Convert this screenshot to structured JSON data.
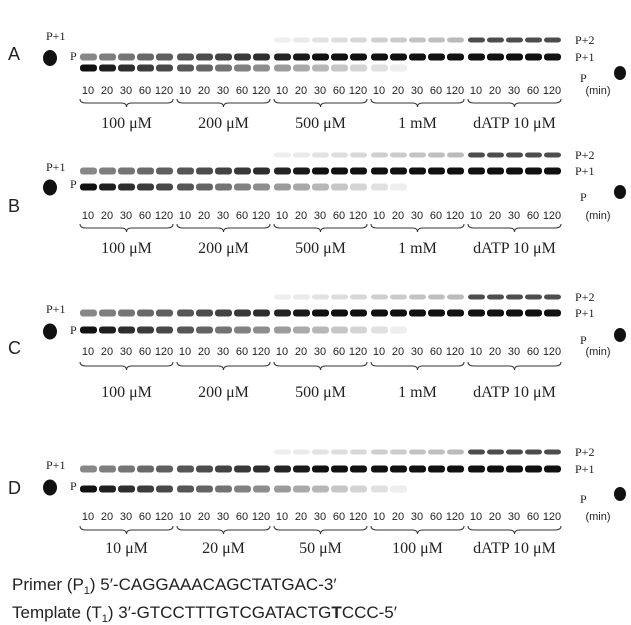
{
  "panels": [
    {
      "letter": "A",
      "left_labels": [
        "P+1",
        "P"
      ],
      "right_labels": [
        "P+2",
        "P+1",
        "P"
      ],
      "times": [
        "10",
        "20",
        "30",
        "60",
        "120"
      ],
      "unit": "(min)",
      "groups": [
        "100 μM",
        "200 μM",
        "500 μM",
        "1 mM",
        "dATP 10 μM"
      ]
    },
    {
      "letter": "B",
      "left_labels": [
        "P+1",
        "P"
      ],
      "right_labels": [
        "P+2",
        "P+1",
        "P"
      ],
      "times": [
        "10",
        "20",
        "30",
        "60",
        "120"
      ],
      "unit": "(min)",
      "groups": [
        "100 μM",
        "200 μM",
        "500 μM",
        "1 mM",
        "dATP 10 μM"
      ]
    },
    {
      "letter": "C",
      "left_labels": [
        "P+1",
        "P"
      ],
      "right_labels": [
        "P+2",
        "P+1",
        "P"
      ],
      "times": [
        "10",
        "20",
        "30",
        "60",
        "120"
      ],
      "unit": "(min)",
      "groups": [
        "100 μM",
        "200 μM",
        "500 μM",
        "1 mM",
        "dATP 10 μM"
      ]
    },
    {
      "letter": "D",
      "left_labels": [
        "P+1",
        "P"
      ],
      "right_labels": [
        "P+2",
        "P+1",
        "P"
      ],
      "times": [
        "10",
        "20",
        "30",
        "60",
        "120"
      ],
      "unit": "(min)",
      "groups": [
        "10 μM",
        "20 μM",
        "50 μM",
        "100 μM",
        "dATP 10 μM"
      ]
    }
  ],
  "primer": {
    "prefix": "Primer (P",
    "sub": "1",
    "sequence": ") 5′-CAGGAAACAGCTATGAC-3′"
  },
  "template": {
    "prefix": "Template (T",
    "sub": "1",
    "sequence": ") 3′-GTCCTTTGTCGATACTG",
    "bold": "T",
    "tail": "CCC-5′"
  }
}
